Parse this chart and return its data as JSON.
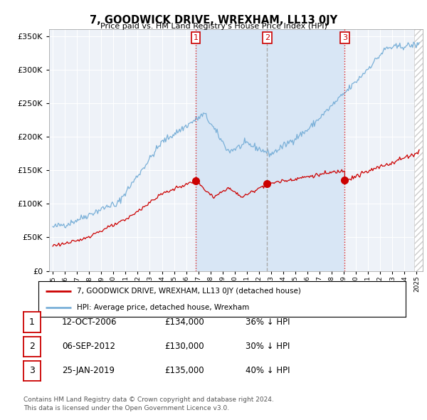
{
  "title": "7, GOODWICK DRIVE, WREXHAM, LL13 0JY",
  "subtitle": "Price paid vs. HM Land Registry's House Price Index (HPI)",
  "background_color": "#ffffff",
  "plot_bg_color": "#eef2f8",
  "grid_color": "#ffffff",
  "shade_color": "#d8e6f5",
  "hatch_color": "#cccccc",
  "ylim": [
    0,
    360000
  ],
  "yticks": [
    0,
    50000,
    100000,
    150000,
    200000,
    250000,
    300000,
    350000
  ],
  "hpi_color": "#7ab0d8",
  "price_color": "#cc0000",
  "transactions": [
    {
      "date_num": 2006.79,
      "price": 134000,
      "label": "1",
      "vline_color": "#dd2222",
      "vline_style": ":"
    },
    {
      "date_num": 2012.68,
      "price": 130000,
      "label": "2",
      "vline_color": "#aaaaaa",
      "vline_style": "--"
    },
    {
      "date_num": 2019.07,
      "price": 135000,
      "label": "3",
      "vline_color": "#dd2222",
      "vline_style": ":"
    }
  ],
  "vline_color": "#cc0000",
  "legend_entry1": "7, GOODWICK DRIVE, WREXHAM, LL13 0JY (detached house)",
  "legend_entry2": "HPI: Average price, detached house, Wrexham",
  "table_rows": [
    {
      "num": "1",
      "date": "12-OCT-2006",
      "price": "£134,000",
      "pct": "36% ↓ HPI"
    },
    {
      "num": "2",
      "date": "06-SEP-2012",
      "price": "£130,000",
      "pct": "30% ↓ HPI"
    },
    {
      "num": "3",
      "date": "25-JAN-2019",
      "price": "£135,000",
      "pct": "40% ↓ HPI"
    }
  ],
  "footnote1": "Contains HM Land Registry data © Crown copyright and database right 2024.",
  "footnote2": "This data is licensed under the Open Government Licence v3.0.",
  "xmin": 1995.0,
  "xmax": 2025.5
}
